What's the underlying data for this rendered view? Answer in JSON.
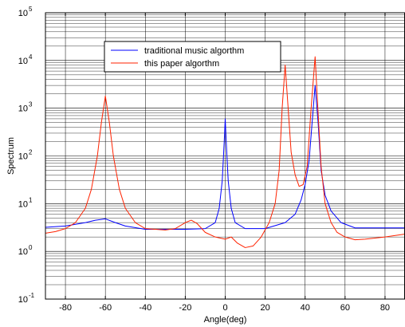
{
  "chart_data": {
    "type": "line",
    "xlabel": "Angle(deg)",
    "ylabel": "Spectrum",
    "xlim": [
      -90,
      90
    ],
    "ylim": [
      0.1,
      100000
    ],
    "yscale": "log",
    "grid": "on (major and minor)",
    "legend_placement": "upper-center",
    "x_ticks": [
      -80,
      -60,
      -40,
      -20,
      0,
      20,
      40,
      60,
      80
    ],
    "x_tick_labels": [
      "-80",
      "-60",
      "-40",
      "-20",
      "0",
      "20",
      "40",
      "60",
      "80"
    ],
    "y_ticks": [
      0.1,
      1,
      10,
      100,
      1000,
      10000,
      100000
    ],
    "y_tick_labels": [
      {
        "base": "10",
        "exp": "-1"
      },
      {
        "base": "10",
        "exp": "0"
      },
      {
        "base": "10",
        "exp": "1"
      },
      {
        "base": "10",
        "exp": "2"
      },
      {
        "base": "10",
        "exp": "3"
      },
      {
        "base": "10",
        "exp": "4"
      },
      {
        "base": "10",
        "exp": "5"
      }
    ],
    "series": [
      {
        "name": "traditional music algorthm",
        "color": "#0000ff",
        "points": [
          [
            -90,
            3.2
          ],
          [
            -80,
            3.4
          ],
          [
            -70,
            4.0
          ],
          [
            -65,
            4.5
          ],
          [
            -60,
            4.8
          ],
          [
            -55,
            4.0
          ],
          [
            -50,
            3.4
          ],
          [
            -40,
            2.9
          ],
          [
            -30,
            2.9
          ],
          [
            -20,
            2.9
          ],
          [
            -10,
            3.0
          ],
          [
            -5,
            4.0
          ],
          [
            -3,
            8
          ],
          [
            -1.5,
            30
          ],
          [
            -0.5,
            200
          ],
          [
            0,
            600
          ],
          [
            0.5,
            200
          ],
          [
            1.5,
            30
          ],
          [
            3,
            8
          ],
          [
            5,
            4.0
          ],
          [
            10,
            3.0
          ],
          [
            20,
            3.0
          ],
          [
            30,
            4.0
          ],
          [
            35,
            6
          ],
          [
            38,
            12
          ],
          [
            40,
            25
          ],
          [
            42,
            80
          ],
          [
            43.5,
            500
          ],
          [
            45,
            3000
          ],
          [
            46.5,
            500
          ],
          [
            48,
            50
          ],
          [
            50,
            15
          ],
          [
            53,
            7
          ],
          [
            58,
            4
          ],
          [
            65,
            3.1
          ],
          [
            70,
            3.1
          ],
          [
            80,
            3.1
          ],
          [
            90,
            3.1
          ]
        ]
      },
      {
        "name": "this paper algorthm",
        "color": "#ff2200",
        "points": [
          [
            -90,
            2.4
          ],
          [
            -85,
            2.6
          ],
          [
            -80,
            3.0
          ],
          [
            -75,
            4.0
          ],
          [
            -70,
            8
          ],
          [
            -67,
            20
          ],
          [
            -64,
            100
          ],
          [
            -62,
            500
          ],
          [
            -60,
            1800
          ],
          [
            -58,
            500
          ],
          [
            -56,
            100
          ],
          [
            -53,
            20
          ],
          [
            -50,
            8
          ],
          [
            -45,
            4.0
          ],
          [
            -40,
            3.0
          ],
          [
            -30,
            2.8
          ],
          [
            -25,
            3.0
          ],
          [
            -20,
            4.0
          ],
          [
            -17,
            4.5
          ],
          [
            -14,
            3.8
          ],
          [
            -10,
            2.5
          ],
          [
            -5,
            2.0
          ],
          [
            0,
            1.8
          ],
          [
            3,
            2.0
          ],
          [
            6,
            1.5
          ],
          [
            10,
            1.2
          ],
          [
            14,
            1.3
          ],
          [
            18,
            2.0
          ],
          [
            22,
            4.0
          ],
          [
            25,
            10
          ],
          [
            27,
            50
          ],
          [
            28.5,
            1000
          ],
          [
            30,
            8000
          ],
          [
            31.5,
            1000
          ],
          [
            33,
            120
          ],
          [
            35,
            40
          ],
          [
            37,
            23
          ],
          [
            39,
            25
          ],
          [
            41,
            60
          ],
          [
            43,
            1000
          ],
          [
            45,
            12000
          ],
          [
            46.5,
            800
          ],
          [
            48,
            60
          ],
          [
            50,
            10
          ],
          [
            53,
            4.0
          ],
          [
            56,
            2.5
          ],
          [
            60,
            2.0
          ],
          [
            65,
            1.75
          ],
          [
            70,
            1.8
          ],
          [
            80,
            2.0
          ],
          [
            90,
            2.3
          ]
        ]
      }
    ]
  }
}
